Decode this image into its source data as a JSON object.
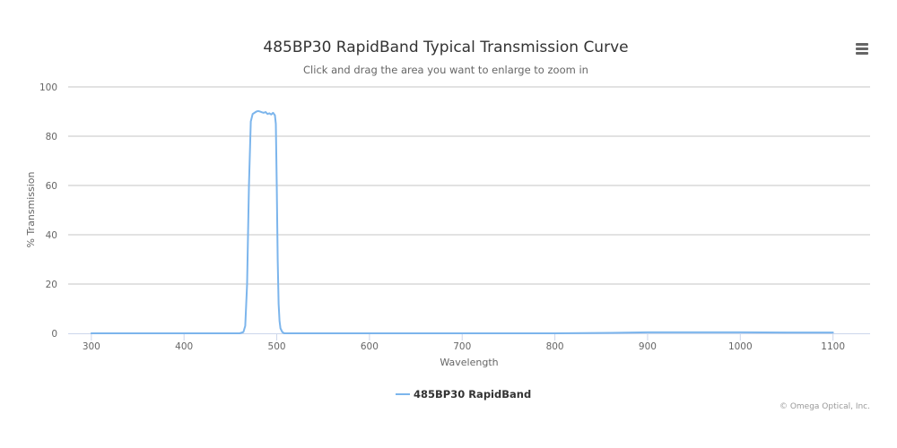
{
  "chart_data": {
    "type": "line",
    "title": "485BP30 RapidBand Typical Transmission Curve",
    "subtitle": "Click and drag the area you want to enlarge to zoom in",
    "xlabel": "Wavelength",
    "ylabel": "% Transmission",
    "xlim": [
      275,
      1140
    ],
    "ylim": [
      0,
      100
    ],
    "x_ticks": [
      300,
      400,
      500,
      600,
      700,
      800,
      900,
      1000,
      1100
    ],
    "y_ticks": [
      0,
      20,
      40,
      60,
      80,
      100
    ],
    "grid": "horizontal",
    "legend_position": "bottom-center",
    "credits": "© Omega Optical, Inc.",
    "series": [
      {
        "name": "485BP30 RapidBand",
        "color": "#7cb5ec",
        "x": [
          300,
          400,
          460,
          464,
          466,
          468,
          470,
          472,
          474,
          476,
          478,
          480,
          482,
          484,
          486,
          488,
          490,
          492,
          494,
          496,
          498,
          499,
          500,
          501,
          502,
          503,
          504,
          506,
          508,
          520,
          600,
          700,
          800,
          860,
          900,
          950,
          1000,
          1050,
          1100
        ],
        "y": [
          0,
          0,
          0,
          0.5,
          3,
          20,
          60,
          86,
          89,
          89.5,
          90,
          90.2,
          90,
          89.7,
          89.5,
          89.8,
          89,
          89.3,
          88.8,
          89.5,
          88.5,
          85,
          60,
          30,
          12,
          5,
          2,
          0.5,
          0,
          0,
          0,
          0,
          0,
          0.2,
          0.4,
          0.4,
          0.4,
          0.3,
          0.3
        ]
      }
    ]
  }
}
